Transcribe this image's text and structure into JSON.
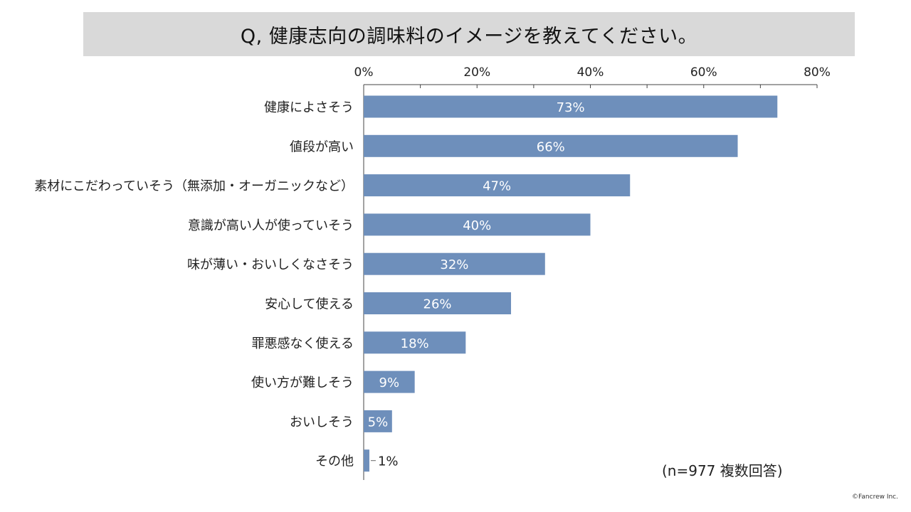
{
  "title": "Q, 健康志向の調味料のイメージを教えてください。",
  "note": "(n=977 複数回答)",
  "copyright": "©Fancrew Inc.",
  "colors": {
    "bar": "#6e8fbb",
    "title_band": "#d9d9d9",
    "bar_label": "#ffffff",
    "axis": "#444444"
  },
  "chart_data": {
    "type": "bar",
    "orientation": "horizontal",
    "categories": [
      "健康によさそう",
      "値段が高い",
      "素材にこだわっていそう（無添加・オーガニックなど）",
      "意識が高い人が使っていそう",
      "味が薄い・おいしくなさそう",
      "安心して使える",
      "罪悪感なく使える",
      "使い方が難しそう",
      "おいしそう",
      "その他"
    ],
    "values": [
      73,
      66,
      47,
      40,
      32,
      26,
      18,
      9,
      5,
      1
    ],
    "value_labels": [
      "73%",
      "66%",
      "47%",
      "40%",
      "32%",
      "26%",
      "18%",
      "9%",
      "5%",
      "1%"
    ],
    "xlim": [
      0,
      80
    ],
    "xticks": [
      0,
      20,
      40,
      60,
      80
    ],
    "xtick_labels": [
      "0%",
      "20%",
      "40%",
      "60%",
      "80%"
    ],
    "axis_position": "top",
    "grid": false,
    "legend": "none"
  }
}
